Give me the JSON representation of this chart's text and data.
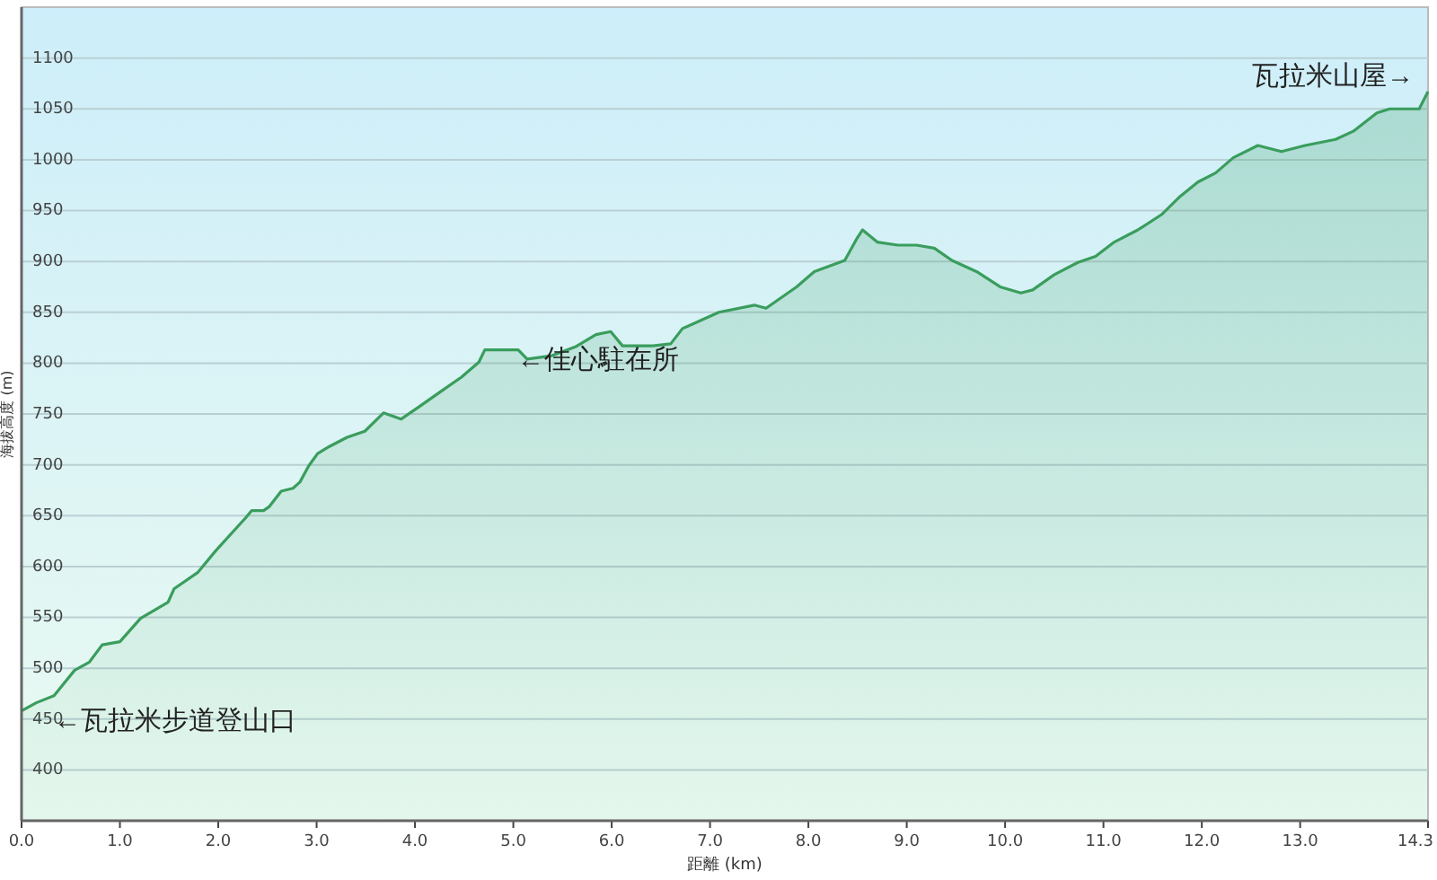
{
  "chart_data": {
    "type": "area",
    "xlabel": "距離 (km)",
    "ylabel": "海拔高度 (m)",
    "x": [
      0,
      0.15,
      0.33,
      0.54,
      0.69,
      0.82,
      1.0,
      1.21,
      1.49,
      1.55,
      1.79,
      1.97,
      2.28,
      2.34,
      2.46,
      2.52,
      2.64,
      2.76,
      2.83,
      2.92,
      3.01,
      3.13,
      3.31,
      3.49,
      3.68,
      3.86,
      4.04,
      4.29,
      4.47,
      4.65,
      4.71,
      5.05,
      5.14,
      5.38,
      5.63,
      5.84,
      5.99,
      6.11,
      6.42,
      6.6,
      6.72,
      7.09,
      7.45,
      7.57,
      7.88,
      8.06,
      8.37,
      8.49,
      8.55,
      8.7,
      8.91,
      9.1,
      9.28,
      9.46,
      9.71,
      9.95,
      10.16,
      10.28,
      10.5,
      10.74,
      10.92,
      11.11,
      11.35,
      11.59,
      11.78,
      11.96,
      12.14,
      12.32,
      12.57,
      12.81,
      13.05,
      13.36,
      13.54,
      13.78,
      13.91,
      14.21,
      14.3
    ],
    "series": [
      {
        "color": "#3a9d5d",
        "values": [
          458,
          466,
          473,
          498,
          506,
          523,
          526,
          549,
          565,
          578,
          594,
          615,
          648,
          655,
          655,
          659,
          674,
          677,
          683,
          699,
          711,
          718,
          727,
          733,
          751,
          745,
          757,
          774,
          786,
          801,
          813,
          813,
          804,
          807,
          816,
          828,
          831,
          817,
          817,
          819,
          834,
          850,
          857,
          854,
          875,
          890,
          901,
          922,
          931,
          919,
          916,
          916,
          913,
          901,
          890,
          875,
          869,
          872,
          887,
          899,
          905,
          919,
          931,
          946,
          964,
          978,
          987,
          1002,
          1014,
          1008,
          1014,
          1020,
          1028,
          1046,
          1050,
          1050,
          1067
        ]
      }
    ],
    "xlim": [
      0,
      14.3
    ],
    "ylim": [
      350,
      1150
    ],
    "xticks": [
      {
        "value": 0,
        "label": "0.0"
      },
      {
        "value": 1,
        "label": "1.0"
      },
      {
        "value": 2,
        "label": "2.0"
      },
      {
        "value": 3,
        "label": "3.0"
      },
      {
        "value": 4,
        "label": "4.0"
      },
      {
        "value": 5,
        "label": "5.0"
      },
      {
        "value": 6,
        "label": "6.0"
      },
      {
        "value": 7,
        "label": "7.0"
      },
      {
        "value": 8,
        "label": "8.0"
      },
      {
        "value": 9,
        "label": "9.0"
      },
      {
        "value": 10,
        "label": "10.0"
      },
      {
        "value": 11,
        "label": "11.0"
      },
      {
        "value": 12,
        "label": "12.0"
      },
      {
        "value": 13,
        "label": "13.0"
      },
      {
        "value": 14.3,
        "label": "14.3"
      }
    ],
    "yticks": [
      400,
      450,
      500,
      550,
      600,
      650,
      700,
      750,
      800,
      850,
      900,
      950,
      1000,
      1050,
      1100
    ],
    "grid": "y",
    "annotations": [
      {
        "text": "←瓦拉米步道登山口",
        "x": 0,
        "y": 458
      },
      {
        "text": "←佳心駐在所",
        "x": 4.71,
        "y": 813
      },
      {
        "text": "瓦拉米山屋→",
        "x": 14.3,
        "y": 1067
      }
    ]
  }
}
